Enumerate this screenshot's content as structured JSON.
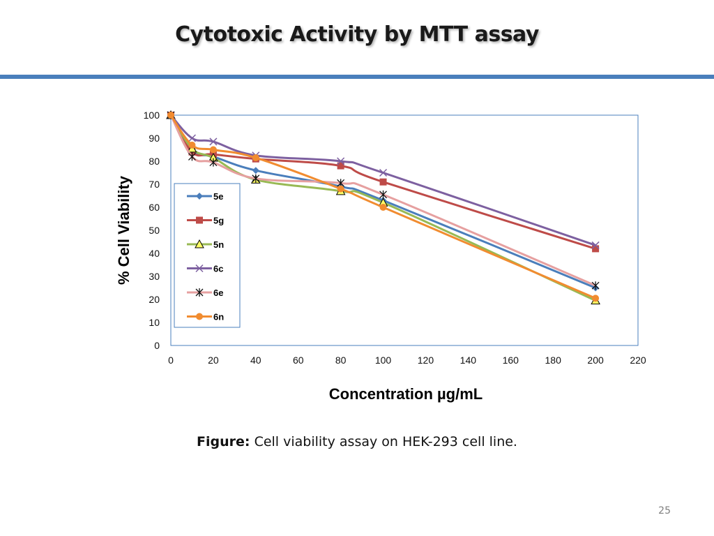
{
  "slide": {
    "title": "Cytotoxic Activity by MTT assay",
    "caption_label": "Figure:",
    "caption_text": "Cell viability assay on HEK-293 cell line.",
    "page_number": "25",
    "accent_color": "#4a7fbc"
  },
  "chart_data": {
    "type": "line",
    "title": "",
    "xlabel": "Concentration µg/mL",
    "ylabel": "% Cell Viability",
    "xlim": [
      0,
      220
    ],
    "ylim": [
      0,
      100
    ],
    "x_ticks": [
      0,
      20,
      40,
      60,
      80,
      100,
      120,
      140,
      160,
      180,
      200,
      220
    ],
    "y_ticks": [
      0,
      10,
      20,
      30,
      40,
      50,
      60,
      70,
      80,
      90,
      100
    ],
    "legend_position": "left-center",
    "x": [
      0,
      10,
      20,
      40,
      80,
      100,
      200
    ],
    "series": [
      {
        "name": "5e",
        "color": "#4a7ebb",
        "marker": "diamond",
        "values": [
          100,
          84.5,
          82,
          76,
          69,
          63,
          25
        ]
      },
      {
        "name": "5g",
        "color": "#be4b48",
        "marker": "square",
        "values": [
          100,
          84,
          83,
          81,
          78,
          71,
          42
        ]
      },
      {
        "name": "5n",
        "color": "#98b954",
        "marker": "triangle",
        "values": [
          100,
          85.5,
          81.5,
          72,
          67,
          62,
          19.5
        ]
      },
      {
        "name": "6c",
        "color": "#7d60a0",
        "marker": "x",
        "values": [
          100,
          90,
          88.5,
          82.5,
          80,
          75,
          43.5
        ]
      },
      {
        "name": "6e",
        "color": "#111111",
        "line_color": "#e6a0a0",
        "marker": "star",
        "values": [
          100,
          82,
          79.5,
          72.5,
          70.5,
          65.5,
          26
        ]
      },
      {
        "name": "6n",
        "color": "#f18c30",
        "marker": "circle",
        "values": [
          100,
          87,
          85,
          81.5,
          68,
          60,
          20.5
        ]
      }
    ]
  }
}
